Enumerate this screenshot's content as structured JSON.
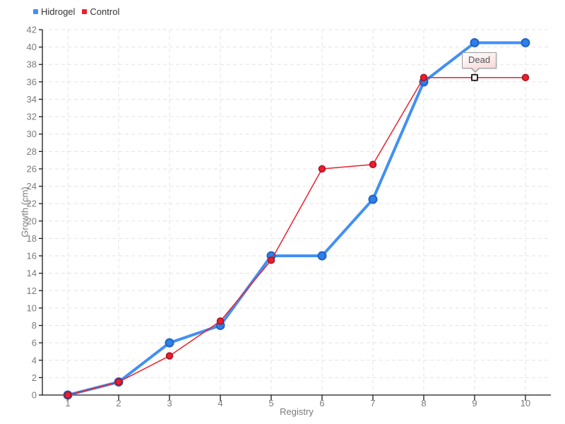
{
  "chart_data": {
    "type": "line",
    "title": "",
    "xlabel": "Registry",
    "ylabel": "Growth (cm)",
    "x": [
      1,
      2,
      3,
      4,
      5,
      6,
      7,
      8,
      9,
      10
    ],
    "series": [
      {
        "name": "Hidrogel",
        "color": "#4190f4",
        "marker_fill": "#2e7fe8",
        "marker_stroke": "#1f63c6",
        "line_width": 4,
        "marker_radius": 5.5,
        "marker_stroke_width": 2,
        "values": [
          0,
          1.5,
          6,
          8,
          16,
          16,
          22.5,
          36,
          40.5,
          40.5
        ]
      },
      {
        "name": "Control",
        "color": "#e8212e",
        "marker_fill": "#e8202e",
        "marker_stroke": "#a81220",
        "line_width": 1.5,
        "marker_radius": 4.5,
        "marker_stroke_width": 1.5,
        "values": [
          0,
          1.5,
          4.5,
          8.5,
          15.5,
          26,
          26.5,
          36.5,
          36.5,
          36.5
        ]
      }
    ],
    "xlim": [
      0.5,
      10.5
    ],
    "ylim": [
      0,
      42
    ],
    "xticks": [
      1,
      2,
      3,
      4,
      5,
      6,
      7,
      8,
      9,
      10
    ],
    "yticks": [
      0,
      2,
      4,
      6,
      8,
      10,
      12,
      14,
      16,
      18,
      20,
      22,
      24,
      26,
      28,
      30,
      32,
      34,
      36,
      38,
      40,
      42
    ],
    "grid": "dashed",
    "legend_position": "top-left",
    "annotation": {
      "label": "Dead",
      "series": "Control",
      "x": 9,
      "y": 36.5,
      "marker": "white-square-black-border"
    }
  },
  "style": {
    "background": "#ffffff",
    "grid_color": "#e3e3e3",
    "axis_color": "#1a1a1a",
    "tick_label_color": "#7b7b7b",
    "legend_text_color": "#333333",
    "tooltip_border": "#9a9a9a",
    "tooltip_text_color": "#555555",
    "annotation_marker_fill": "#ffffff",
    "annotation_marker_stroke": "#111111"
  }
}
